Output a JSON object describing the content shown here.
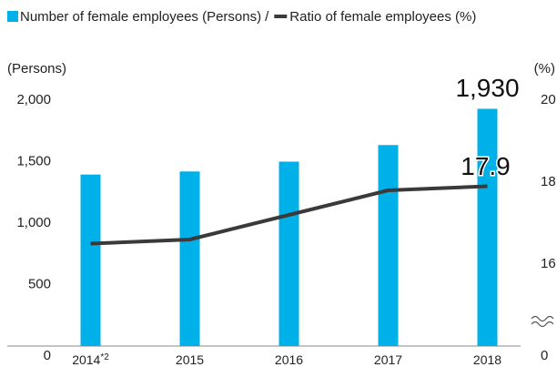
{
  "chart_data": {
    "type": "bar_line",
    "categories": [
      "2014",
      "2015",
      "2016",
      "2017",
      "2018"
    ],
    "category_notes": [
      "*2",
      null,
      null,
      null,
      null
    ],
    "series": [
      {
        "name": "Number of female employees (Persons)",
        "type": "bar",
        "color": "#00b0e8",
        "values": [
          1395,
          1420,
          1500,
          1635,
          1930
        ],
        "value_labels": [
          null,
          null,
          null,
          null,
          "1,930"
        ]
      },
      {
        "name": "Ratio of female employees (%)",
        "type": "line",
        "axis": "y2",
        "color": "#3a3a3a",
        "values": [
          16.5,
          16.6,
          17.2,
          17.8,
          17.9
        ],
        "value_labels": [
          null,
          null,
          null,
          null,
          "17.9"
        ]
      }
    ],
    "legend_separator": "/",
    "ylabel": "(Persons)",
    "y2label": "(%)",
    "ylim": [
      0,
      2000
    ],
    "yticks": [
      0,
      500,
      {
        "value": 1000,
        "label": "1,000"
      },
      {
        "value": 1500,
        "label": "1,500"
      },
      {
        "value": 2000,
        "label": "2,000"
      }
    ],
    "y2lim": [
      14,
      20
    ],
    "y2ticks": [
      0,
      16,
      18,
      20
    ],
    "y2_axis_break": true
  }
}
